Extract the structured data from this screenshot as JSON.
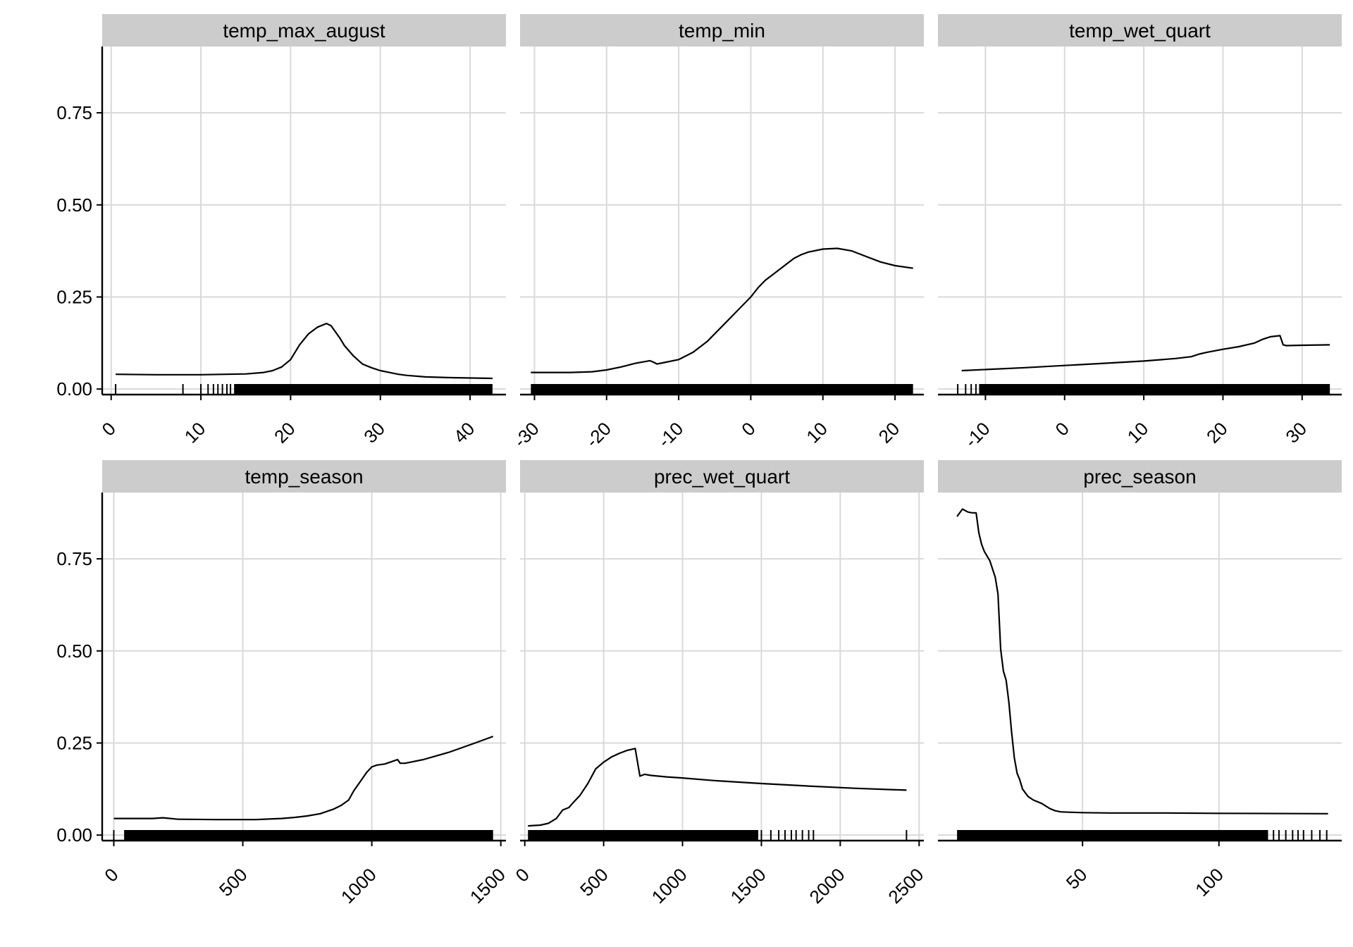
{
  "chart_data": [
    {
      "type": "line",
      "title": "temp_max_august",
      "xlim": [
        -1,
        44
      ],
      "ylim": [
        -0.015,
        0.93
      ],
      "xticks": [
        0,
        10,
        20,
        30,
        40
      ],
      "yticks": [
        0.0,
        0.25,
        0.5,
        0.75
      ],
      "ytick_labels": [
        "0.00",
        "0.25",
        "0.50",
        "0.75"
      ],
      "x": [
        0.5,
        5,
        10,
        15,
        17,
        18,
        19,
        20,
        21,
        22,
        23,
        24,
        24.5,
        25,
        25.5,
        26,
        27,
        28,
        29,
        30,
        31,
        32,
        33,
        35,
        38,
        42.5
      ],
      "y": [
        0.04,
        0.039,
        0.039,
        0.041,
        0.045,
        0.05,
        0.06,
        0.08,
        0.12,
        0.15,
        0.168,
        0.178,
        0.172,
        0.155,
        0.138,
        0.118,
        0.09,
        0.068,
        0.058,
        0.05,
        0.045,
        0.04,
        0.037,
        0.033,
        0.031,
        0.029
      ],
      "rug": {
        "ticks": [
          0.5,
          8,
          10,
          10.8,
          11.4,
          11.9,
          12.4,
          12.9,
          13.3
        ],
        "band": [
          13.7,
          42.5
        ]
      }
    },
    {
      "type": "line",
      "title": "temp_min",
      "xlim": [
        -32,
        24
      ],
      "ylim": [
        -0.015,
        0.93
      ],
      "xticks": [
        -30,
        -20,
        -10,
        0,
        10,
        20
      ],
      "yticks": [
        0.0,
        0.25,
        0.5,
        0.75
      ],
      "ytick_labels": [
        "0.00",
        "0.25",
        "0.50",
        "0.75"
      ],
      "x": [
        -30.5,
        -25,
        -22,
        -20,
        -18,
        -16,
        -14,
        -13.5,
        -13,
        -12,
        -10,
        -8,
        -6,
        -4,
        -2,
        0,
        1,
        2,
        3,
        4,
        5,
        6,
        7,
        8,
        10,
        12,
        14,
        16,
        18,
        20,
        22.5
      ],
      "y": [
        0.045,
        0.045,
        0.047,
        0.052,
        0.06,
        0.07,
        0.077,
        0.073,
        0.068,
        0.072,
        0.08,
        0.1,
        0.13,
        0.17,
        0.21,
        0.25,
        0.275,
        0.295,
        0.31,
        0.325,
        0.34,
        0.355,
        0.365,
        0.372,
        0.38,
        0.382,
        0.375,
        0.36,
        0.345,
        0.335,
        0.328
      ],
      "rug": {
        "ticks": [],
        "band": [
          -30.5,
          22.5
        ]
      }
    },
    {
      "type": "line",
      "title": "temp_wet_quart",
      "xlim": [
        -16,
        35
      ],
      "ylim": [
        -0.015,
        0.93
      ],
      "xticks": [
        -10,
        0,
        10,
        20,
        30
      ],
      "yticks": [
        0.0,
        0.25,
        0.5,
        0.75
      ],
      "ytick_labels": [
        "0.00",
        "0.25",
        "0.50",
        "0.75"
      ],
      "x": [
        -13,
        -5,
        0,
        5,
        10,
        14,
        16,
        17,
        18,
        20,
        22,
        24,
        25,
        26,
        27.2,
        27.6,
        28,
        30,
        33.5
      ],
      "y": [
        0.05,
        0.058,
        0.064,
        0.07,
        0.076,
        0.083,
        0.088,
        0.095,
        0.1,
        0.108,
        0.115,
        0.125,
        0.135,
        0.142,
        0.145,
        0.12,
        0.118,
        0.119,
        0.12
      ],
      "rug": {
        "ticks": [
          -13.5,
          -12.5,
          -11.8,
          -11.2
        ],
        "band": [
          -10.8,
          33.5
        ]
      }
    },
    {
      "type": "line",
      "title": "temp_season",
      "xlim": [
        -45,
        1520
      ],
      "ylim": [
        -0.015,
        0.93
      ],
      "xticks": [
        0,
        500,
        1000,
        1500
      ],
      "yticks": [
        0.0,
        0.25,
        0.5,
        0.75
      ],
      "ytick_labels": [
        "0.00",
        "0.25",
        "0.50",
        "0.75"
      ],
      "x": [
        0,
        100,
        150,
        190,
        220,
        250,
        400,
        550,
        650,
        700,
        750,
        800,
        850,
        880,
        910,
        930,
        950,
        980,
        1000,
        1020,
        1050,
        1080,
        1100,
        1110,
        1130,
        1150,
        1200,
        1300,
        1400,
        1470
      ],
      "y": [
        0.045,
        0.045,
        0.045,
        0.047,
        0.045,
        0.043,
        0.042,
        0.042,
        0.045,
        0.048,
        0.052,
        0.058,
        0.07,
        0.08,
        0.095,
        0.12,
        0.14,
        0.17,
        0.185,
        0.19,
        0.193,
        0.2,
        0.205,
        0.195,
        0.195,
        0.198,
        0.205,
        0.225,
        0.25,
        0.268
      ],
      "rug": {
        "ticks": [
          0
        ],
        "band": [
          40,
          1470
        ]
      }
    },
    {
      "type": "line",
      "title": "prec_wet_quart",
      "xlim": [
        -30,
        2530
      ],
      "ylim": [
        -0.015,
        0.93
      ],
      "xticks": [
        0,
        500,
        1000,
        1500,
        2000,
        2500
      ],
      "yticks": [
        0.0,
        0.25,
        0.5,
        0.75
      ],
      "ytick_labels": [
        "0.00",
        "0.25",
        "0.50",
        "0.75"
      ],
      "x": [
        20,
        100,
        150,
        200,
        240,
        280,
        300,
        350,
        400,
        450,
        500,
        550,
        600,
        650,
        700,
        730,
        760,
        800,
        900,
        1000,
        1200,
        1500,
        1800,
        2100,
        2420
      ],
      "y": [
        0.025,
        0.027,
        0.032,
        0.045,
        0.068,
        0.075,
        0.085,
        0.108,
        0.14,
        0.18,
        0.198,
        0.212,
        0.222,
        0.23,
        0.235,
        0.16,
        0.165,
        0.162,
        0.158,
        0.155,
        0.148,
        0.14,
        0.133,
        0.127,
        0.122
      ],
      "rug": {
        "ticks": [
          1500,
          1560,
          1610,
          1650,
          1690,
          1720,
          1760,
          1800,
          1830,
          2420
        ],
        "band": [
          20,
          1480
        ]
      }
    },
    {
      "type": "line",
      "title": "prec_season",
      "xlim": [
        -3,
        145
      ],
      "ylim": [
        -0.015,
        0.93
      ],
      "xticks": [
        50,
        100
      ],
      "yticks": [
        0.0,
        0.25,
        0.5,
        0.75
      ],
      "ytick_labels": [
        "0.00",
        "0.25",
        "0.50",
        "0.75"
      ],
      "x": [
        4,
        6,
        8,
        9.5,
        11,
        12,
        13,
        14,
        16,
        18,
        19,
        20,
        21,
        22,
        23,
        24,
        25,
        26,
        27,
        28,
        30,
        32,
        35,
        38,
        40,
        42,
        45,
        50,
        60,
        80,
        100,
        140
      ],
      "y": [
        0.865,
        0.885,
        0.877,
        0.875,
        0.875,
        0.82,
        0.79,
        0.77,
        0.745,
        0.7,
        0.655,
        0.505,
        0.445,
        0.42,
        0.36,
        0.28,
        0.21,
        0.168,
        0.15,
        0.125,
        0.105,
        0.095,
        0.086,
        0.072,
        0.066,
        0.063,
        0.062,
        0.061,
        0.06,
        0.06,
        0.059,
        0.058
      ],
      "rug": {
        "ticks": [
          120,
          122,
          124.5,
          127,
          129,
          131,
          134,
          137,
          139.5
        ],
        "band": [
          4,
          118
        ]
      }
    }
  ]
}
